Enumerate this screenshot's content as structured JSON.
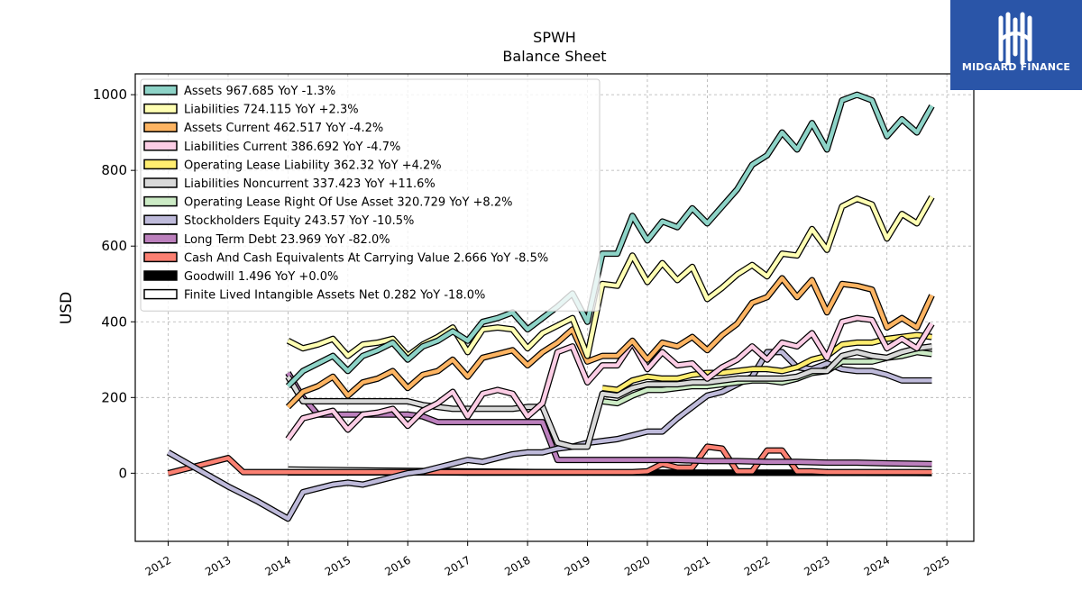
{
  "chart_data": {
    "type": "line",
    "title": "SPWH",
    "subtitle": "Balance  Sheet",
    "xlabel": "",
    "ylabel": "USD",
    "xlim": [
      2011.45,
      2025.45
    ],
    "ylim": [
      -180,
      1055
    ],
    "x_ticks": [
      2012,
      2013,
      2014,
      2015,
      2016,
      2017,
      2018,
      2019,
      2020,
      2021,
      2022,
      2023,
      2024,
      2025
    ],
    "y_ticks": [
      0,
      200,
      400,
      600,
      800,
      1000
    ],
    "grid": true,
    "legend_position": "top-left",
    "series": [
      {
        "name": "Assets",
        "label": "Assets  967.685 YoY -1.3%",
        "color": "#8dd3c7",
        "x": [
          2014.0,
          2014.25,
          2014.5,
          2014.75,
          2015.0,
          2015.25,
          2015.5,
          2015.75,
          2016.0,
          2016.25,
          2016.5,
          2016.75,
          2017.0,
          2017.25,
          2017.5,
          2017.75,
          2018.0,
          2018.25,
          2018.5,
          2018.75,
          2019.0,
          2019.25,
          2019.5,
          2019.75,
          2020.0,
          2020.25,
          2020.5,
          2020.75,
          2021.0,
          2021.25,
          2021.5,
          2021.75,
          2022.0,
          2022.25,
          2022.5,
          2022.75,
          2023.0,
          2023.25,
          2023.5,
          2023.75,
          2024.0,
          2024.25,
          2024.5,
          2024.75
        ],
        "y": [
          230,
          270,
          290,
          310,
          270,
          310,
          325,
          345,
          300,
          335,
          350,
          375,
          350,
          400,
          410,
          425,
          380,
          410,
          440,
          475,
          400,
          580,
          580,
          680,
          615,
          665,
          650,
          700,
          660,
          705,
          750,
          815,
          840,
          900,
          855,
          925,
          855,
          985,
          1000,
          985,
          890,
          935,
          900,
          970
        ]
      },
      {
        "name": "Liabilities",
        "label": "Liabilities  724.115 YoY +2.3%",
        "color": "#ffffb3",
        "x": [
          2014.0,
          2014.25,
          2014.5,
          2014.75,
          2015.0,
          2015.25,
          2015.5,
          2015.75,
          2016.0,
          2016.25,
          2016.5,
          2016.75,
          2017.0,
          2017.25,
          2017.5,
          2017.75,
          2018.0,
          2018.25,
          2018.5,
          2018.75,
          2019.0,
          2019.25,
          2019.5,
          2019.75,
          2020.0,
          2020.25,
          2020.5,
          2020.75,
          2021.0,
          2021.25,
          2021.5,
          2021.75,
          2022.0,
          2022.25,
          2022.5,
          2022.75,
          2023.0,
          2023.25,
          2023.5,
          2023.75,
          2024.0,
          2024.25,
          2024.5,
          2024.75
        ],
        "y": [
          350,
          330,
          340,
          355,
          310,
          340,
          345,
          355,
          310,
          340,
          360,
          385,
          320,
          380,
          385,
          380,
          330,
          370,
          390,
          410,
          310,
          500,
          495,
          575,
          505,
          555,
          510,
          545,
          460,
          490,
          525,
          550,
          520,
          580,
          575,
          645,
          590,
          705,
          725,
          710,
          620,
          685,
          660,
          730
        ]
      },
      {
        "name": "Assets Current",
        "label": "Assets Current  462.517 YoY -4.2%",
        "color": "#fdb462",
        "x": [
          2014.0,
          2014.25,
          2014.5,
          2014.75,
          2015.0,
          2015.25,
          2015.5,
          2015.75,
          2016.0,
          2016.25,
          2016.5,
          2016.75,
          2017.0,
          2017.25,
          2017.5,
          2017.75,
          2018.0,
          2018.25,
          2018.5,
          2018.75,
          2019.0,
          2019.25,
          2019.5,
          2019.75,
          2020.0,
          2020.25,
          2020.5,
          2020.75,
          2021.0,
          2021.25,
          2021.5,
          2021.75,
          2022.0,
          2022.25,
          2022.5,
          2022.75,
          2023.0,
          2023.25,
          2023.5,
          2023.75,
          2024.0,
          2024.25,
          2024.5,
          2024.75
        ],
        "y": [
          175,
          215,
          230,
          255,
          205,
          240,
          250,
          270,
          225,
          260,
          270,
          300,
          255,
          305,
          315,
          325,
          285,
          320,
          345,
          380,
          295,
          310,
          310,
          350,
          300,
          345,
          335,
          360,
          325,
          365,
          395,
          450,
          465,
          515,
          465,
          510,
          425,
          500,
          495,
          485,
          385,
          410,
          385,
          470
        ]
      },
      {
        "name": "Liabilities Current",
        "label": "Liabilities Current  386.692 YoY -4.7%",
        "color": "#fccde5",
        "x": [
          2014.0,
          2014.25,
          2014.5,
          2014.75,
          2015.0,
          2015.25,
          2015.5,
          2015.75,
          2016.0,
          2016.25,
          2016.5,
          2016.75,
          2017.0,
          2017.25,
          2017.5,
          2017.75,
          2018.0,
          2018.25,
          2018.5,
          2018.75,
          2019.0,
          2019.25,
          2019.5,
          2019.75,
          2020.0,
          2020.25,
          2020.5,
          2020.75,
          2021.0,
          2021.25,
          2021.5,
          2021.75,
          2022.0,
          2022.25,
          2022.5,
          2022.75,
          2023.0,
          2023.25,
          2023.5,
          2023.75,
          2024.0,
          2024.25,
          2024.5,
          2024.75
        ],
        "y": [
          90,
          145,
          155,
          165,
          115,
          155,
          160,
          170,
          125,
          165,
          185,
          215,
          150,
          210,
          220,
          210,
          150,
          185,
          320,
          335,
          240,
          285,
          285,
          345,
          275,
          320,
          285,
          290,
          250,
          280,
          300,
          335,
          300,
          345,
          335,
          370,
          305,
          400,
          410,
          405,
          330,
          355,
          330,
          395
        ]
      },
      {
        "name": "Operating Lease Liability",
        "label": "Operating Lease Liability  362.32 YoY +4.2%",
        "color": "#ffed6f",
        "x": [
          2019.25,
          2019.5,
          2019.75,
          2020.0,
          2020.25,
          2020.5,
          2020.75,
          2021.0,
          2021.25,
          2021.5,
          2021.75,
          2022.0,
          2022.25,
          2022.5,
          2022.75,
          2023.0,
          2023.25,
          2023.5,
          2023.75,
          2024.0,
          2024.25,
          2024.5,
          2024.75
        ],
        "y": [
          225,
          220,
          245,
          255,
          250,
          250,
          260,
          265,
          265,
          270,
          275,
          275,
          270,
          280,
          300,
          310,
          340,
          345,
          345,
          355,
          360,
          365,
          360
        ]
      },
      {
        "name": "Liabilities Noncurrent",
        "label": "Liabilities Noncurrent  337.423 YoY +11.6%",
        "color": "#d9d9d9",
        "x": [
          2014.0,
          2014.25,
          2014.5,
          2014.75,
          2015.0,
          2015.25,
          2015.5,
          2015.75,
          2016.0,
          2016.25,
          2016.5,
          2016.75,
          2017.0,
          2017.25,
          2017.5,
          2017.75,
          2018.0,
          2018.25,
          2018.5,
          2018.75,
          2019.0,
          2019.25,
          2019.5,
          2019.75,
          2020.0,
          2020.25,
          2020.5,
          2020.75,
          2021.0,
          2021.25,
          2021.5,
          2021.75,
          2022.0,
          2022.25,
          2022.5,
          2022.75,
          2023.0,
          2023.25,
          2023.5,
          2023.75,
          2024.0,
          2024.25,
          2024.5,
          2024.75
        ],
        "y": [
          255,
          190,
          190,
          190,
          190,
          190,
          190,
          190,
          190,
          180,
          175,
          170,
          170,
          170,
          170,
          170,
          175,
          175,
          80,
          70,
          70,
          210,
          205,
          225,
          235,
          235,
          235,
          240,
          240,
          245,
          250,
          250,
          250,
          250,
          255,
          270,
          270,
          310,
          320,
          310,
          305,
          320,
          330,
          335
        ]
      },
      {
        "name": "Operating Lease Right Of Use Asset",
        "label": "Operating Lease Right Of Use Asset  320.729 YoY +8.2%",
        "color": "#ccebc5",
        "x": [
          2019.25,
          2019.5,
          2019.75,
          2020.0,
          2020.25,
          2020.5,
          2020.75,
          2021.0,
          2021.25,
          2021.5,
          2021.75,
          2022.0,
          2022.25,
          2022.5,
          2022.75,
          2023.0,
          2023.25,
          2023.5,
          2023.75,
          2024.0,
          2024.25,
          2024.5,
          2024.75
        ],
        "y": [
          190,
          185,
          205,
          220,
          220,
          225,
          230,
          230,
          235,
          240,
          245,
          245,
          240,
          250,
          265,
          270,
          295,
          295,
          295,
          305,
          310,
          320,
          315
        ]
      },
      {
        "name": "Stockholders Equity",
        "label": "Stockholders Equity  243.57 YoY -10.5%",
        "color": "#bebada",
        "x": [
          2012.0,
          2012.5,
          2013.0,
          2013.5,
          2014.0,
          2014.25,
          2014.5,
          2014.75,
          2015.0,
          2015.25,
          2015.5,
          2015.75,
          2016.0,
          2016.25,
          2016.5,
          2016.75,
          2017.0,
          2017.25,
          2017.5,
          2017.75,
          2018.0,
          2018.25,
          2018.5,
          2018.75,
          2019.0,
          2019.25,
          2019.5,
          2019.75,
          2020.0,
          2020.25,
          2020.5,
          2020.75,
          2021.0,
          2021.25,
          2021.5,
          2021.75,
          2022.0,
          2022.25,
          2022.5,
          2022.75,
          2023.0,
          2023.25,
          2023.5,
          2023.75,
          2024.0,
          2024.25,
          2024.5,
          2024.75
        ],
        "y": [
          55,
          10,
          -35,
          -75,
          -120,
          -50,
          -40,
          -30,
          -25,
          -30,
          -20,
          -10,
          0,
          5,
          15,
          25,
          35,
          30,
          40,
          50,
          55,
          55,
          65,
          70,
          80,
          85,
          90,
          100,
          110,
          110,
          145,
          175,
          205,
          215,
          235,
          255,
          320,
          320,
          280,
          275,
          290,
          275,
          270,
          270,
          260,
          245,
          245,
          245
        ]
      },
      {
        "name": "Long Term Debt",
        "label": "Long Term Debt  23.969 YoY -82.0%",
        "color": "#bc80bd",
        "x": [
          2014.0,
          2014.25,
          2014.5,
          2014.75,
          2015.0,
          2015.25,
          2015.5,
          2015.75,
          2016.0,
          2016.25,
          2016.5,
          2016.75,
          2017.0,
          2017.25,
          2017.5,
          2017.75,
          2018.0,
          2018.25,
          2018.5,
          2018.75,
          2019.0,
          2019.5,
          2020.0,
          2020.5,
          2021.0,
          2021.5,
          2022.0,
          2022.5,
          2023.0,
          2023.5,
          2024.0,
          2024.5,
          2024.75
        ],
        "y": [
          265,
          200,
          155,
          155,
          155,
          155,
          155,
          155,
          155,
          150,
          135,
          135,
          135,
          135,
          135,
          135,
          135,
          135,
          35,
          35,
          35,
          35,
          35,
          35,
          32,
          32,
          30,
          30,
          28,
          28,
          26,
          25,
          24
        ]
      },
      {
        "name": "Cash And Cash Equivalents At Carrying Value",
        "label": "Cash And Cash Equivalents At Carrying Value  2.666 YoY -8.5%",
        "color": "#fb8072",
        "x": [
          2012.0,
          2012.5,
          2013.0,
          2013.25,
          2013.5,
          2014.0,
          2014.5,
          2015.0,
          2015.5,
          2016.0,
          2016.5,
          2017.0,
          2017.5,
          2018.0,
          2018.5,
          2019.0,
          2019.5,
          2019.75,
          2020.0,
          2020.25,
          2020.5,
          2020.75,
          2021.0,
          2021.25,
          2021.5,
          2021.75,
          2022.0,
          2022.25,
          2022.5,
          2022.75,
          2023.0,
          2023.5,
          2024.0,
          2024.5,
          2024.75
        ],
        "y": [
          0,
          20,
          40,
          3,
          3,
          3,
          3,
          3,
          3,
          3,
          3,
          3,
          3,
          3,
          3,
          3,
          3,
          3,
          5,
          25,
          15,
          15,
          70,
          65,
          5,
          5,
          60,
          60,
          5,
          5,
          3,
          3,
          3,
          3,
          3
        ]
      },
      {
        "name": "Goodwill",
        "label": "Goodwill  1.496 YoY +0.0%",
        "color": "#000000",
        "x": [
          2014.0,
          2016.5,
          2017.0,
          2024.75
        ],
        "y": [
          2,
          2,
          1.5,
          1.5
        ]
      },
      {
        "name": "Finite Lived Intangible Assets Net",
        "label": "Finite Lived Intangible Assets Net  0.282 YoY -18.0%",
        "color": "#ffffff",
        "x": [
          2014.0,
          2016.0,
          2019.0,
          2024.75
        ],
        "y": [
          10,
          6,
          2,
          0.3
        ]
      }
    ]
  },
  "brand": {
    "name": "MIDGARD FINANCE"
  }
}
